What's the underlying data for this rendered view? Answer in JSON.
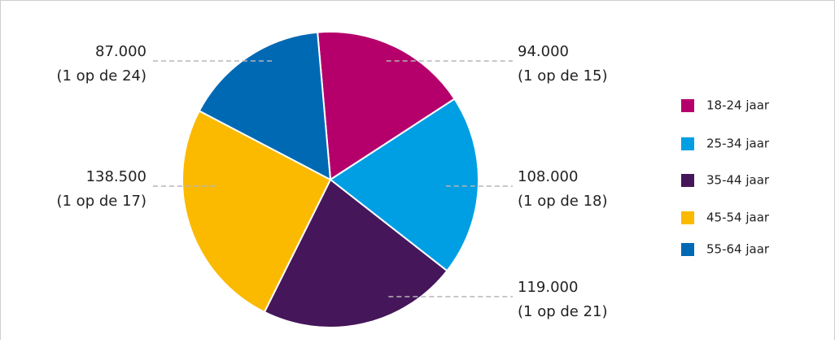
{
  "chart_data": {
    "type": "pie",
    "categories": [
      "18-24 jaar",
      "25-34 jaar",
      "35-44 jaar",
      "45-54 jaar",
      "55-64 jaar"
    ],
    "values": [
      94000,
      108000,
      119000,
      138500,
      87000
    ],
    "value_labels": [
      "94.000",
      "108.000",
      "119.000",
      "138.500",
      "87.000"
    ],
    "ratio_labels": [
      "(1 op de 15)",
      "(1 op de 18)",
      "(1 op de 21)",
      "(1 op de 17)",
      "(1 op de 24)"
    ],
    "colors": [
      "#b5006b",
      "#009fe3",
      "#45165a",
      "#fbba00",
      "#0069b4"
    ],
    "legend": "right"
  }
}
